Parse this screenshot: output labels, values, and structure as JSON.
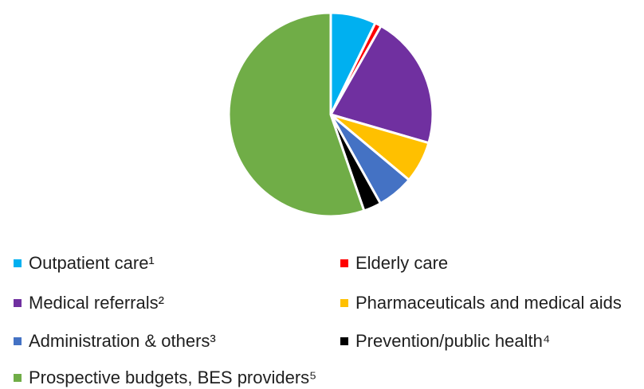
{
  "chart_data": {
    "type": "pie",
    "title": "",
    "start_angle_deg": 0,
    "direction": "clockwise",
    "legend_position": "bottom",
    "categories": [
      "Outpatient care¹",
      "Elderly care",
      "Medical referrals²",
      "Pharmaceuticals and medical aids",
      "Administration & others³",
      "Prevention/public health⁴",
      "Prospective budgets, BES providers⁵"
    ],
    "values": [
      7.2,
      1.0,
      21.3,
      6.6,
      5.8,
      2.8,
      55.3
    ],
    "colors": [
      "#00b0f0",
      "#ff0000",
      "#7030a0",
      "#ffc000",
      "#4472c4",
      "#000000",
      "#70ad47"
    ]
  }
}
